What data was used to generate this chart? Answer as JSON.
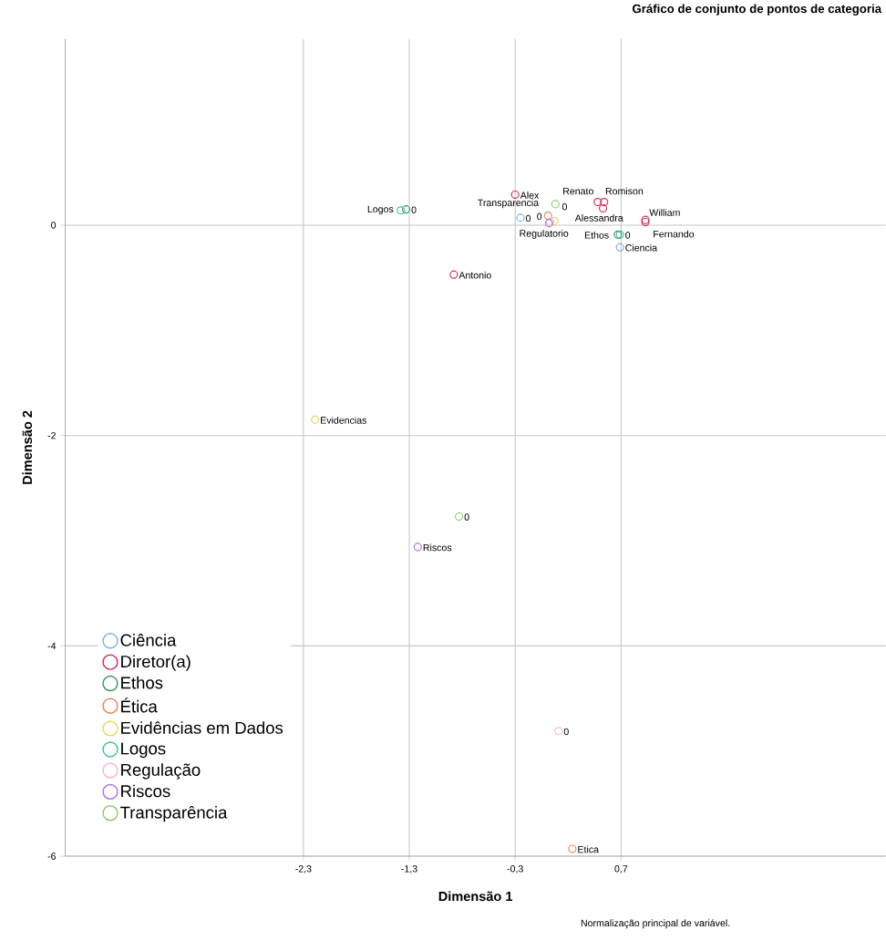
{
  "chart_data": {
    "type": "scatter",
    "title": "Gráfico de conjunto de pontos de categoria",
    "xlabel": "Dimensão 1",
    "ylabel": "Dimensão 2",
    "xlim": [
      -4.55,
      3.2
    ],
    "ylim": [
      -6,
      1.77
    ],
    "xticks": [
      {
        "value": -2.3,
        "label": "-2,3"
      },
      {
        "value": -1.3,
        "label": "-1,3"
      },
      {
        "value": -0.3,
        "label": "-0,3"
      },
      {
        "value": 0.7,
        "label": "0,7"
      }
    ],
    "yticks": [
      -6,
      -4,
      -2,
      0
    ],
    "grid": true,
    "legend": "bottom left",
    "marker": "circle",
    "annotations": [
      "Normalização principal de variável.",
      {
        "text": "Renato",
        "x": 0.54,
        "y": 0.22
      },
      {
        "text": "Alessandra",
        "x": 0.53,
        "y": 0.16
      },
      {
        "text": "Romison",
        "x": 0.48,
        "y": 0.22
      },
      {
        "text": "William",
        "x": 0.93,
        "y": 0.05
      },
      {
        "text": "Fernando",
        "x": 0.93,
        "y": 0.03
      },
      {
        "text": "Alex",
        "x": -0.3,
        "y": 0.29
      },
      {
        "text": "Antonio",
        "x": -0.88,
        "y": -0.47
      },
      {
        "text": "Transparencia",
        "x": 0.08,
        "y": 0.2
      },
      {
        "text": "Regulatorio",
        "x": 0.03,
        "y": 0.03
      },
      {
        "text": "Ethos",
        "x": 0.67,
        "y": -0.09
      },
      {
        "text": "Ciencia",
        "x": 0.69,
        "y": -0.21
      },
      {
        "text": "0",
        "x": 0.69,
        "y": -0.09
      },
      {
        "text": "0",
        "x": -0.25,
        "y": 0.07
      },
      {
        "text": "0",
        "x": 0.01,
        "y": 0.09
      },
      {
        "text": "0",
        "x": 0.02,
        "y": 0.02
      },
      {
        "text": "0",
        "x": -1.33,
        "y": 0.15
      },
      {
        "text": "Logos",
        "x": -1.38,
        "y": 0.14
      },
      {
        "text": "Evidencias",
        "x": -2.19,
        "y": -1.85
      },
      {
        "text": "0",
        "x": -0.83,
        "y": -2.77
      },
      {
        "text": "Riscos",
        "x": -1.22,
        "y": -3.06
      },
      {
        "text": "0",
        "x": 0.11,
        "y": -4.81
      },
      {
        "text": "Etica",
        "x": 0.24,
        "y": -5.93
      }
    ],
    "series": [
      {
        "name": "Ciência",
        "color": "#7fb0e8",
        "x": [
          0.69,
          -0.25
        ],
        "values": [
          -0.21,
          0.07
        ]
      },
      {
        "name": "Diretor(a)",
        "color": "#d62f5a",
        "x": [
          -0.3,
          -0.88,
          0.48,
          0.54,
          0.53,
          0.93,
          0.93
        ],
        "values": [
          0.29,
          -0.47,
          0.22,
          0.22,
          0.16,
          0.05,
          0.03
        ]
      },
      {
        "name": "Ethos",
        "color": "#3a9a5a",
        "x": [
          -1.33,
          0.67
        ],
        "values": [
          0.15,
          -0.09
        ]
      },
      {
        "name": "Ética",
        "color": "#f0845a",
        "x": [
          0.01,
          0.24
        ],
        "values": [
          0.09,
          -5.93
        ]
      },
      {
        "name": "Evidências em Dados",
        "color": "#e8d860",
        "x": [
          -2.19,
          0.07
        ],
        "values": [
          -1.85,
          0.04
        ]
      },
      {
        "name": "Logos",
        "color": "#40c0a8",
        "x": [
          -1.38,
          0.69
        ],
        "values": [
          0.14,
          -0.09
        ]
      },
      {
        "name": "Regulação",
        "color": "#f8b8cc",
        "x": [
          0.03,
          0.11
        ],
        "values": [
          0.03,
          -4.81
        ]
      },
      {
        "name": "Riscos",
        "color": "#b070e0",
        "x": [
          -1.22,
          0.02
        ],
        "values": [
          -3.06,
          0.02
        ]
      },
      {
        "name": "Transparência",
        "color": "#90cc70",
        "x": [
          0.08,
          -0.83
        ],
        "values": [
          0.2,
          -2.77
        ]
      }
    ]
  }
}
